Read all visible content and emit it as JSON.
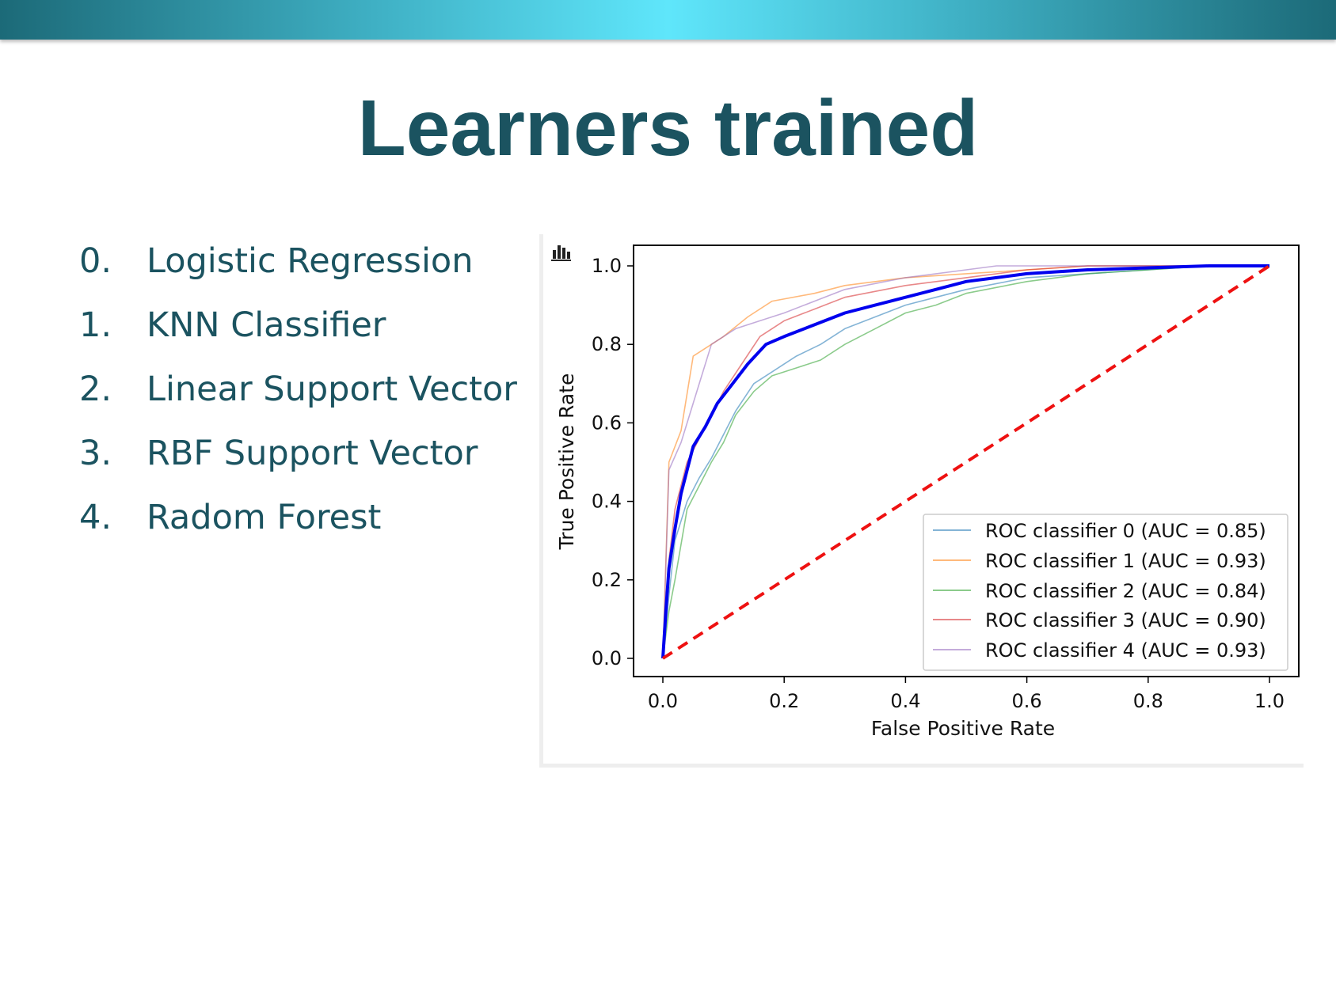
{
  "slide": {
    "title": "Learners trained",
    "list": [
      {
        "num": "0.",
        "label": "Logistic Regression"
      },
      {
        "num": "1.",
        "label": "KNN Classifier"
      },
      {
        "num": "2.",
        "label": "Linear Support Vector"
      },
      {
        "num": "3.",
        "label": "RBF Support Vector"
      },
      {
        "num": "4.",
        "label": "Radom Forest"
      }
    ]
  },
  "chart_icon": "bar-chart-icon",
  "chart_data": {
    "type": "line",
    "xlabel": "False Positive Rate",
    "ylabel": "True Positive Rate",
    "xlim": [
      0.0,
      1.0
    ],
    "ylim": [
      0.0,
      1.0
    ],
    "xticks": [
      "0.0",
      "0.2",
      "0.4",
      "0.6",
      "0.8",
      "1.0"
    ],
    "yticks": [
      "0.0",
      "0.2",
      "0.4",
      "0.6",
      "0.8",
      "1.0"
    ],
    "grid": false,
    "legend_position": "lower-right",
    "series": [
      {
        "name": "ROC classifier 0 (AUC = 0.85)",
        "color": "#1f77b4",
        "x": [
          0.0,
          0.01,
          0.02,
          0.04,
          0.06,
          0.08,
          0.1,
          0.12,
          0.15,
          0.18,
          0.22,
          0.26,
          0.3,
          0.35,
          0.4,
          0.45,
          0.5,
          0.6,
          0.7,
          0.8,
          0.9,
          1.0
        ],
        "y": [
          0.0,
          0.16,
          0.3,
          0.4,
          0.46,
          0.51,
          0.57,
          0.63,
          0.7,
          0.73,
          0.77,
          0.8,
          0.84,
          0.87,
          0.9,
          0.92,
          0.94,
          0.97,
          0.98,
          0.99,
          1.0,
          1.0
        ]
      },
      {
        "name": "ROC classifier 1 (AUC = 0.93)",
        "color": "#ff7f0e",
        "x": [
          0.0,
          0.01,
          0.03,
          0.05,
          0.07,
          0.1,
          0.14,
          0.18,
          0.25,
          0.3,
          0.4,
          0.5,
          0.6,
          0.7,
          0.8,
          0.9,
          1.0
        ],
        "y": [
          0.0,
          0.5,
          0.58,
          0.77,
          0.79,
          0.82,
          0.87,
          0.91,
          0.93,
          0.95,
          0.97,
          0.98,
          0.99,
          1.0,
          1.0,
          1.0,
          1.0
        ]
      },
      {
        "name": "ROC classifier 2 (AUC = 0.84)",
        "color": "#2ca02c",
        "x": [
          0.0,
          0.01,
          0.02,
          0.04,
          0.06,
          0.08,
          0.1,
          0.12,
          0.15,
          0.18,
          0.22,
          0.26,
          0.3,
          0.35,
          0.4,
          0.45,
          0.5,
          0.6,
          0.7,
          0.8,
          0.9,
          1.0
        ],
        "y": [
          0.0,
          0.12,
          0.2,
          0.38,
          0.44,
          0.5,
          0.55,
          0.62,
          0.68,
          0.72,
          0.74,
          0.76,
          0.8,
          0.84,
          0.88,
          0.9,
          0.93,
          0.96,
          0.98,
          0.99,
          1.0,
          1.0
        ]
      },
      {
        "name": "ROC classifier 3 (AUC = 0.90)",
        "color": "#d62728",
        "x": [
          0.0,
          0.01,
          0.02,
          0.04,
          0.06,
          0.08,
          0.1,
          0.13,
          0.16,
          0.2,
          0.25,
          0.3,
          0.4,
          0.5,
          0.6,
          0.7,
          0.8,
          0.9,
          1.0
        ],
        "y": [
          0.0,
          0.25,
          0.38,
          0.5,
          0.56,
          0.62,
          0.68,
          0.75,
          0.82,
          0.86,
          0.89,
          0.92,
          0.95,
          0.97,
          0.99,
          1.0,
          1.0,
          1.0,
          1.0
        ]
      },
      {
        "name": "ROC classifier 4 (AUC = 0.93)",
        "color": "#9467bd",
        "x": [
          0.0,
          0.01,
          0.03,
          0.05,
          0.08,
          0.12,
          0.16,
          0.2,
          0.25,
          0.3,
          0.4,
          0.5,
          0.55,
          0.6,
          0.7,
          0.8,
          0.9,
          1.0
        ],
        "y": [
          0.0,
          0.48,
          0.55,
          0.65,
          0.8,
          0.84,
          0.86,
          0.88,
          0.91,
          0.94,
          0.97,
          0.99,
          1.0,
          1.0,
          1.0,
          1.0,
          1.0,
          1.0
        ]
      }
    ],
    "mean_curve": {
      "color": "#0000ee",
      "x": [
        0.0,
        0.005,
        0.01,
        0.02,
        0.03,
        0.05,
        0.07,
        0.09,
        0.11,
        0.14,
        0.17,
        0.2,
        0.25,
        0.3,
        0.35,
        0.4,
        0.45,
        0.5,
        0.55,
        0.6,
        0.7,
        0.8,
        0.9,
        1.0
      ],
      "y": [
        0.0,
        0.12,
        0.23,
        0.33,
        0.42,
        0.54,
        0.59,
        0.65,
        0.69,
        0.75,
        0.8,
        0.82,
        0.85,
        0.88,
        0.9,
        0.92,
        0.94,
        0.96,
        0.97,
        0.98,
        0.99,
        0.995,
        1.0,
        1.0
      ]
    },
    "chance_line": {
      "color": "#ee1111",
      "x": [
        0.0,
        1.0
      ],
      "y": [
        0.0,
        1.0
      ]
    }
  }
}
